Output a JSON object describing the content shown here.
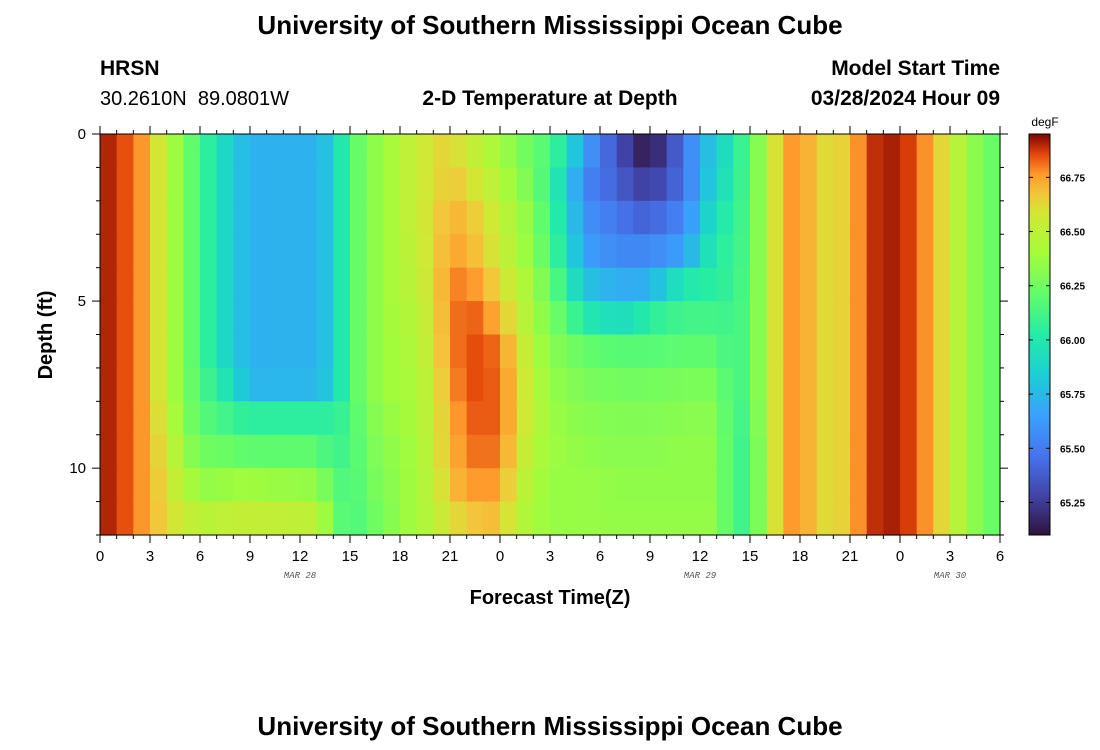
{
  "header": {
    "title": "University of Southern Mississippi Ocean Cube",
    "station": "HRSN",
    "coords": "30.2610N  89.0801W",
    "plot_title": "2-D Temperature at Depth",
    "model_start_label": "Model Start Time",
    "model_start_value": "03/28/2024 Hour 09"
  },
  "footer": {
    "title": "University of Southern Mississippi Ocean Cube"
  },
  "colors": {
    "background": "#ffffff",
    "axis": "#000000"
  },
  "chart_data": {
    "type": "heatmap",
    "title": "2-D Temperature at Depth",
    "xlabel": "Forecast Time(Z)",
    "ylabel": "Depth (ft)",
    "x_range_hours": [
      0,
      54
    ],
    "x_ticks": [
      {
        "hour": 0,
        "label": "0"
      },
      {
        "hour": 3,
        "label": "3"
      },
      {
        "hour": 6,
        "label": "6"
      },
      {
        "hour": 9,
        "label": "9"
      },
      {
        "hour": 12,
        "label": "12"
      },
      {
        "hour": 15,
        "label": "15"
      },
      {
        "hour": 18,
        "label": "18"
      },
      {
        "hour": 21,
        "label": "21"
      },
      {
        "hour": 24,
        "label": "0"
      },
      {
        "hour": 27,
        "label": "3"
      },
      {
        "hour": 30,
        "label": "6"
      },
      {
        "hour": 33,
        "label": "9"
      },
      {
        "hour": 36,
        "label": "12"
      },
      {
        "hour": 39,
        "label": "15"
      },
      {
        "hour": 42,
        "label": "18"
      },
      {
        "hour": 45,
        "label": "21"
      },
      {
        "hour": 48,
        "label": "0"
      },
      {
        "hour": 51,
        "label": "3"
      },
      {
        "hour": 54,
        "label": "6"
      }
    ],
    "date_labels": [
      {
        "hour": 12,
        "label": "MAR 28"
      },
      {
        "hour": 36,
        "label": "MAR 29"
      },
      {
        "hour": 51,
        "label": "MAR 30"
      }
    ],
    "y_range_ft": [
      0,
      12
    ],
    "y_ticks": [
      0,
      5,
      10
    ],
    "depth_levels_ft": [
      0.5,
      1.5,
      2.5,
      3.5,
      4.5,
      5.5,
      6.5,
      7.5,
      8.5,
      9.5,
      10.5,
      11.5
    ],
    "time_step_hours": 1,
    "time_segments": [
      {
        "hour": 0,
        "v": [
          66.93,
          66.93,
          66.93,
          66.93,
          66.93,
          66.93,
          66.93,
          66.93,
          66.93,
          66.93,
          66.93,
          66.93
        ]
      },
      {
        "hour": 2,
        "v": [
          66.82,
          66.82,
          66.82,
          66.82,
          66.82,
          66.82,
          66.82,
          66.82,
          66.82,
          66.82,
          66.82,
          66.82
        ]
      },
      {
        "hour": 3,
        "v": [
          66.72,
          66.72,
          66.72,
          66.72,
          66.72,
          66.72,
          66.72,
          66.72,
          66.72,
          66.72,
          66.72,
          66.72
        ]
      },
      {
        "hour": 4,
        "v": [
          66.45,
          66.45,
          66.45,
          66.45,
          66.45,
          66.45,
          66.45,
          66.45,
          66.5,
          66.55,
          66.6,
          66.62
        ]
      },
      {
        "hour": 5,
        "v": [
          66.3,
          66.3,
          66.3,
          66.3,
          66.3,
          66.3,
          66.3,
          66.3,
          66.32,
          66.38,
          66.45,
          66.55
        ]
      },
      {
        "hour": 6,
        "v": [
          66.12,
          66.12,
          66.12,
          66.12,
          66.12,
          66.12,
          66.12,
          66.15,
          66.18,
          66.25,
          66.35,
          66.48
        ]
      },
      {
        "hour": 7,
        "v": [
          65.97,
          65.97,
          65.97,
          65.97,
          65.97,
          65.97,
          65.97,
          66.05,
          66.15,
          66.25,
          66.35,
          66.48
        ]
      },
      {
        "hour": 8,
        "v": [
          65.82,
          65.82,
          65.82,
          65.82,
          65.82,
          65.82,
          65.82,
          65.9,
          66.08,
          66.22,
          66.38,
          66.52
        ]
      },
      {
        "hour": 9,
        "v": [
          65.72,
          65.72,
          65.72,
          65.72,
          65.72,
          65.72,
          65.72,
          65.74,
          66.05,
          66.2,
          66.38,
          66.52
        ]
      },
      {
        "hour": 13,
        "v": [
          65.72,
          65.72,
          65.72,
          65.72,
          65.72,
          65.72,
          65.72,
          65.74,
          66.05,
          66.2,
          66.35,
          66.5
        ]
      },
      {
        "hour": 14,
        "v": [
          65.85,
          65.85,
          65.85,
          65.85,
          65.85,
          65.85,
          65.85,
          65.85,
          66.05,
          66.1,
          66.2,
          66.25
        ]
      },
      {
        "hour": 15,
        "v": [
          66.15,
          66.15,
          66.15,
          66.15,
          66.15,
          66.15,
          66.15,
          66.15,
          66.12,
          66.12,
          66.12,
          66.12
        ]
      },
      {
        "hour": 16,
        "v": [
          66.3,
          66.3,
          66.3,
          66.3,
          66.3,
          66.3,
          66.3,
          66.3,
          66.28,
          66.26,
          66.24,
          66.22
        ]
      },
      {
        "hour": 17,
        "v": [
          66.38,
          66.38,
          66.38,
          66.38,
          66.38,
          66.38,
          66.38,
          66.38,
          66.35,
          66.32,
          66.3,
          66.28
        ]
      },
      {
        "hour": 18,
        "v": [
          66.45,
          66.45,
          66.45,
          66.45,
          66.45,
          66.42,
          66.4,
          66.4,
          66.38,
          66.36,
          66.35,
          66.35
        ]
      },
      {
        "hour": 19,
        "v": [
          66.55,
          66.55,
          66.55,
          66.52,
          66.5,
          66.48,
          66.45,
          66.42,
          66.42,
          66.4,
          66.4,
          66.4
        ]
      },
      {
        "hour": 20,
        "v": [
          66.6,
          66.6,
          66.62,
          66.62,
          66.62,
          66.6,
          66.58,
          66.55,
          66.55,
          66.55,
          66.52,
          66.5
        ]
      },
      {
        "hour": 21,
        "v": [
          66.65,
          66.68,
          66.72,
          66.75,
          66.78,
          66.78,
          66.78,
          66.75,
          66.72,
          66.7,
          66.68,
          66.6
        ]
      },
      {
        "hour": 22,
        "v": [
          66.55,
          66.62,
          66.68,
          66.72,
          66.8,
          66.85,
          66.85,
          66.85,
          66.82,
          66.8,
          66.75,
          66.65
        ]
      },
      {
        "hour": 23,
        "v": [
          66.48,
          66.55,
          66.62,
          66.65,
          66.72,
          66.8,
          66.85,
          66.85,
          66.85,
          66.82,
          66.78,
          66.7
        ]
      },
      {
        "hour": 24,
        "v": [
          66.4,
          66.45,
          66.52,
          66.55,
          66.62,
          66.7,
          66.8,
          66.82,
          66.82,
          66.8,
          66.75,
          66.68
        ]
      },
      {
        "hour": 25,
        "v": [
          66.3,
          66.35,
          66.4,
          66.42,
          66.5,
          66.55,
          66.62,
          66.65,
          66.65,
          66.6,
          66.55,
          66.5
        ]
      },
      {
        "hour": 26,
        "v": [
          66.22,
          66.25,
          66.3,
          66.32,
          66.38,
          66.4,
          66.45,
          66.48,
          66.48,
          66.45,
          66.42,
          66.4
        ]
      },
      {
        "hour": 27,
        "v": [
          66.15,
          66.1,
          66.12,
          66.15,
          66.22,
          66.28,
          66.32,
          66.35,
          66.38,
          66.38,
          66.36,
          66.36
        ]
      },
      {
        "hour": 28,
        "v": [
          65.95,
          65.85,
          65.9,
          65.95,
          66.05,
          66.18,
          66.28,
          66.32,
          66.34,
          66.36,
          66.36,
          66.36
        ]
      },
      {
        "hour": 29,
        "v": [
          65.65,
          65.55,
          65.6,
          65.65,
          65.8,
          66.0,
          66.22,
          66.28,
          66.32,
          66.34,
          66.36,
          66.36
        ]
      },
      {
        "hour": 31,
        "v": [
          65.35,
          65.4,
          65.48,
          65.55,
          65.7,
          65.92,
          66.18,
          66.26,
          66.3,
          66.32,
          66.34,
          66.35
        ]
      },
      {
        "hour": 32,
        "v": [
          65.2,
          65.3,
          65.42,
          65.55,
          65.7,
          65.95,
          66.18,
          66.26,
          66.3,
          66.32,
          66.34,
          66.35
        ]
      },
      {
        "hour": 33,
        "v": [
          65.12,
          65.25,
          65.4,
          65.55,
          65.72,
          66.05,
          66.18,
          66.26,
          66.3,
          66.32,
          66.34,
          66.35
        ]
      },
      {
        "hour": 35,
        "v": [
          65.45,
          65.45,
          65.55,
          65.65,
          66.0,
          66.12,
          66.2,
          66.28,
          66.32,
          66.34,
          66.34,
          66.35
        ]
      },
      {
        "hour": 36,
        "v": [
          65.7,
          65.7,
          65.75,
          65.85,
          66.02,
          66.12,
          66.2,
          66.28,
          66.32,
          66.34,
          66.34,
          66.35
        ]
      },
      {
        "hour": 37,
        "v": [
          65.85,
          65.9,
          66.0,
          66.05,
          66.05,
          66.12,
          66.2,
          66.28,
          66.32,
          66.34,
          66.34,
          66.35
        ]
      },
      {
        "hour": 38,
        "v": [
          66.0,
          66.02,
          66.04,
          66.06,
          66.08,
          66.1,
          66.1,
          66.1,
          66.1,
          66.1,
          66.1,
          66.1
        ]
      },
      {
        "hour": 39,
        "v": [
          66.18,
          66.18,
          66.18,
          66.18,
          66.18,
          66.18,
          66.18,
          66.18,
          66.15,
          66.12,
          66.12,
          66.12
        ]
      },
      {
        "hour": 40,
        "v": [
          66.45,
          66.45,
          66.45,
          66.45,
          66.45,
          66.45,
          66.45,
          66.45,
          66.45,
          66.45,
          66.45,
          66.45
        ]
      },
      {
        "hour": 41,
        "v": [
          66.75,
          66.75,
          66.75,
          66.75,
          66.75,
          66.75,
          66.75,
          66.75,
          66.75,
          66.75,
          66.75,
          66.75
        ]
      },
      {
        "hour": 42,
        "v": [
          66.78,
          66.78,
          66.78,
          66.78,
          66.78,
          66.78,
          66.78,
          66.78,
          66.78,
          66.78,
          66.78,
          66.78
        ]
      },
      {
        "hour": 43,
        "v": [
          66.65,
          66.65,
          66.65,
          66.65,
          66.65,
          66.65,
          66.65,
          66.65,
          66.65,
          66.65,
          66.65,
          66.65
        ]
      },
      {
        "hour": 44,
        "v": [
          66.58,
          66.58,
          66.58,
          66.58,
          66.58,
          66.58,
          66.58,
          66.58,
          66.58,
          66.58,
          66.58,
          66.58
        ]
      },
      {
        "hour": 45,
        "v": [
          66.7,
          66.7,
          66.7,
          66.7,
          66.7,
          66.7,
          66.7,
          66.7,
          66.7,
          66.7,
          66.7,
          66.7
        ]
      },
      {
        "hour": 46,
        "v": [
          66.85,
          66.85,
          66.85,
          66.85,
          66.85,
          66.85,
          66.85,
          66.85,
          66.85,
          66.85,
          66.85,
          66.85
        ]
      },
      {
        "hour": 47,
        "v": [
          66.93,
          66.93,
          66.93,
          66.93,
          66.93,
          66.93,
          66.93,
          66.93,
          66.93,
          66.93,
          66.93,
          66.93
        ]
      },
      {
        "hour": 49,
        "v": [
          66.85,
          66.85,
          66.85,
          66.85,
          66.85,
          66.85,
          66.85,
          66.85,
          66.85,
          66.85,
          66.85,
          66.85
        ]
      },
      {
        "hour": 50,
        "v": [
          66.7,
          66.7,
          66.7,
          66.7,
          66.7,
          66.7,
          66.7,
          66.7,
          66.7,
          66.7,
          66.7,
          66.7
        ]
      },
      {
        "hour": 51,
        "v": [
          66.55,
          66.55,
          66.55,
          66.55,
          66.55,
          66.55,
          66.55,
          66.55,
          66.55,
          66.55,
          66.55,
          66.55
        ]
      },
      {
        "hour": 52,
        "v": [
          66.4,
          66.4,
          66.4,
          66.4,
          66.4,
          66.4,
          66.4,
          66.4,
          66.4,
          66.4,
          66.4,
          66.4
        ]
      },
      {
        "hour": 53,
        "v": [
          66.25,
          66.25,
          66.25,
          66.25,
          66.25,
          66.25,
          66.25,
          66.25,
          66.25,
          66.25,
          66.25,
          66.25
        ]
      },
      {
        "hour": 54,
        "v": [
          66.22,
          66.22,
          66.22,
          66.22,
          66.22,
          66.22,
          66.22,
          66.22,
          66.22,
          66.22,
          66.22,
          66.22
        ]
      }
    ],
    "colorbar": {
      "unit": "degF",
      "min": 65.1,
      "max": 66.95,
      "ticks": [
        "65.25",
        "65.50",
        "65.75",
        "66.00",
        "66.25",
        "66.50",
        "66.75"
      ]
    }
  }
}
